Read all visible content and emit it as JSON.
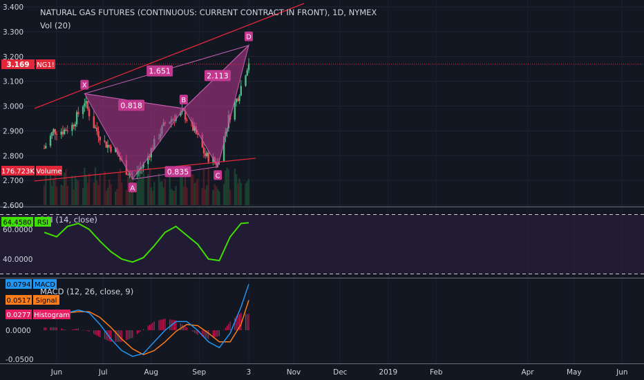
{
  "title": "NATURAL GAS FUTURES (CONTINUOUS: CURRENT CONTRACT IN FRONT), 1D, NYMEX",
  "vol_label": "Vol (20)",
  "colors": {
    "background": "#131722",
    "up": "#53b987",
    "down": "#eb4d5c",
    "pattern": "#b8368f",
    "trend": "#e0283a",
    "rsi": "#3fe000",
    "macd": "#2196f3",
    "signal": "#ff7d1a",
    "histogram": "#e91e63",
    "volume_badge": "#e0283a",
    "ng_badge": "#e0283a",
    "pattern_label": "#c2398f",
    "rsi_band": "#2a1d3d"
  },
  "chart_data": [
    {
      "type": "candlestick",
      "name": "NG1!",
      "ylim": [
        2.6,
        3.4
      ],
      "y_ticks": [
        "3.400",
        "3.300",
        "3.200",
        "3.100",
        "3.000",
        "2.900",
        "2.800",
        "2.700",
        "2.600"
      ],
      "last_price": "3.169",
      "symbol_badge": "NG1!",
      "volume_badge": "176.723K",
      "volume_badge_label": "Volume",
      "pattern": {
        "points": [
          {
            "label": "X",
            "x": "2018-06-19",
            "y": 3.05
          },
          {
            "label": "A",
            "x": "2018-07-20",
            "y": 2.705
          },
          {
            "label": "B",
            "x": "2018-08-22",
            "y": 2.99
          },
          {
            "label": "C",
            "x": "2018-09-13",
            "y": 2.755
          },
          {
            "label": "D",
            "x": "2018-10-03",
            "y": 3.245
          }
        ],
        "ratios": [
          {
            "label": "1.651",
            "between": "X-B"
          },
          {
            "label": "0.818",
            "between": "X-A-B"
          },
          {
            "label": "2.113",
            "between": "B-D"
          },
          {
            "label": "0.835",
            "between": "A-C"
          }
        ]
      },
      "candles_close_approx": [
        {
          "x": "2018-05-24",
          "y": 2.83
        },
        {
          "x": "2018-05-30",
          "y": 2.9
        },
        {
          "x": "2018-06-05",
          "y": 2.9
        },
        {
          "x": "2018-06-11",
          "y": 2.92
        },
        {
          "x": "2018-06-19",
          "y": 3.02
        },
        {
          "x": "2018-06-25",
          "y": 2.92
        },
        {
          "x": "2018-07-02",
          "y": 2.85
        },
        {
          "x": "2018-07-09",
          "y": 2.82
        },
        {
          "x": "2018-07-16",
          "y": 2.74
        },
        {
          "x": "2018-07-20",
          "y": 2.72
        },
        {
          "x": "2018-07-27",
          "y": 2.76
        },
        {
          "x": "2018-08-03",
          "y": 2.85
        },
        {
          "x": "2018-08-10",
          "y": 2.93
        },
        {
          "x": "2018-08-17",
          "y": 2.96
        },
        {
          "x": "2018-08-22",
          "y": 2.97
        },
        {
          "x": "2018-08-29",
          "y": 2.9
        },
        {
          "x": "2018-09-05",
          "y": 2.8
        },
        {
          "x": "2018-09-13",
          "y": 2.77
        },
        {
          "x": "2018-09-20",
          "y": 2.95
        },
        {
          "x": "2018-09-26",
          "y": 3.04
        },
        {
          "x": "2018-10-03",
          "y": 3.18
        }
      ]
    },
    {
      "type": "line",
      "name": "RSI (14, close)",
      "title": "RSI (14, close)",
      "ylim": [
        28,
        72
      ],
      "y_ticks": [
        "60.0000",
        "40.0000"
      ],
      "bands": [
        70,
        30
      ],
      "last_value": "64.4580",
      "last_label": "RSI",
      "x": [
        "2018-05-24",
        "2018-06-01",
        "2018-06-08",
        "2018-06-15",
        "2018-06-22",
        "2018-06-29",
        "2018-07-06",
        "2018-07-13",
        "2018-07-20",
        "2018-07-27",
        "2018-08-03",
        "2018-08-10",
        "2018-08-17",
        "2018-08-24",
        "2018-08-31",
        "2018-09-07",
        "2018-09-14",
        "2018-09-21",
        "2018-09-28",
        "2018-10-03"
      ],
      "values": [
        58,
        55,
        62,
        64,
        60,
        52,
        45,
        40,
        38,
        41,
        49,
        58,
        62,
        56,
        50,
        40,
        39,
        55,
        64,
        64.5
      ]
    },
    {
      "type": "line",
      "name": "MACD (12, 26, close, 9)",
      "title": "MACD (12, 26, close, 9)",
      "ylim": [
        -0.055,
        0.085
      ],
      "y_ticks": [
        "0.0000",
        "-0.0500"
      ],
      "badges": [
        {
          "value": "0.0794",
          "label": "MACD"
        },
        {
          "value": "0.0517",
          "label": "Signal"
        },
        {
          "value": "0.0277",
          "label": "Histogram"
        }
      ],
      "x": [
        "2018-05-24",
        "2018-06-01",
        "2018-06-08",
        "2018-06-15",
        "2018-06-22",
        "2018-06-29",
        "2018-07-06",
        "2018-07-13",
        "2018-07-20",
        "2018-07-27",
        "2018-08-03",
        "2018-08-10",
        "2018-08-17",
        "2018-08-24",
        "2018-08-31",
        "2018-09-07",
        "2018-09-14",
        "2018-09-21",
        "2018-09-28",
        "2018-10-03"
      ],
      "series": [
        {
          "name": "MACD",
          "values": [
            0.025,
            0.03,
            0.03,
            0.035,
            0.03,
            0.01,
            -0.015,
            -0.035,
            -0.045,
            -0.04,
            -0.02,
            0.0,
            0.015,
            0.015,
            0.0,
            -0.02,
            -0.03,
            -0.005,
            0.04,
            0.0794
          ]
        },
        {
          "name": "Signal",
          "values": [
            0.02,
            0.025,
            0.03,
            0.032,
            0.032,
            0.022,
            0.005,
            -0.015,
            -0.032,
            -0.042,
            -0.035,
            -0.02,
            -0.002,
            0.01,
            0.008,
            -0.005,
            -0.02,
            -0.02,
            0.01,
            0.0517
          ]
        },
        {
          "name": "Histogram",
          "values": [
            0.005,
            0.005,
            0.0,
            0.003,
            -0.002,
            -0.012,
            -0.02,
            -0.02,
            -0.013,
            0.002,
            0.015,
            0.02,
            0.017,
            0.005,
            -0.008,
            -0.015,
            -0.01,
            0.015,
            0.03,
            0.0277
          ]
        }
      ]
    }
  ],
  "x_axis": {
    "labels": [
      {
        "label": "Jun",
        "x": "2018-06-01"
      },
      {
        "label": "Jul",
        "x": "2018-07-01"
      },
      {
        "label": "Aug",
        "x": "2018-08-01"
      },
      {
        "label": "Sep",
        "x": "2018-09-01"
      },
      {
        "label": "3",
        "x": "2018-10-03"
      },
      {
        "label": "Nov",
        "x": "2018-11-01"
      },
      {
        "label": "Dec",
        "x": "2018-12-01"
      },
      {
        "label": "2019",
        "x": "2019-01-01"
      },
      {
        "label": "Feb",
        "x": "2019-02-01"
      },
      {
        "label": "Apr",
        "x": "2019-04-01"
      },
      {
        "label": "May",
        "x": "2019-05-01"
      },
      {
        "label": "Jun",
        "x": "2019-06-01"
      }
    ]
  }
}
